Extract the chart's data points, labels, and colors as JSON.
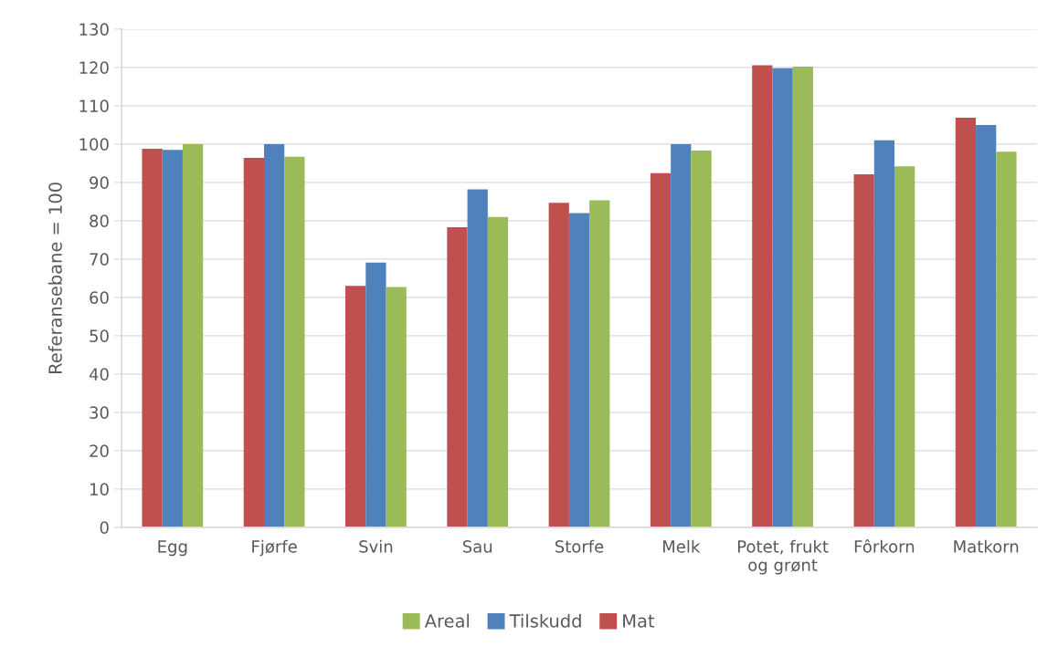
{
  "chart_data": {
    "type": "bar",
    "ylabel": "Referansebane = 100",
    "categories": [
      "Egg",
      "Fjørfe",
      "Svin",
      "Sau",
      "Storfe",
      "Melk",
      "Potet, frukt\nog grønt",
      "Fôrkorn",
      "Matkorn"
    ],
    "series": [
      {
        "name": "Mat",
        "color": "#c0504d",
        "values": [
          98.8,
          96.4,
          63.0,
          78.3,
          84.7,
          92.4,
          120.6,
          92.1,
          106.9
        ]
      },
      {
        "name": "Tilskudd",
        "color": "#4f81bd",
        "values": [
          98.5,
          100,
          69.1,
          88.2,
          82.0,
          100,
          119.8,
          101.0,
          105.0
        ]
      },
      {
        "name": "Areal",
        "color": "#9bbb59",
        "values": [
          100,
          96.7,
          62.7,
          81.0,
          85.3,
          98.3,
          120.2,
          94.2,
          98.0
        ]
      }
    ],
    "ylim": [
      0,
      130
    ],
    "yticks": [
      0,
      10,
      20,
      30,
      40,
      50,
      60,
      70,
      80,
      90,
      100,
      110,
      120,
      130
    ],
    "grid": "y",
    "legend": "bottom"
  }
}
